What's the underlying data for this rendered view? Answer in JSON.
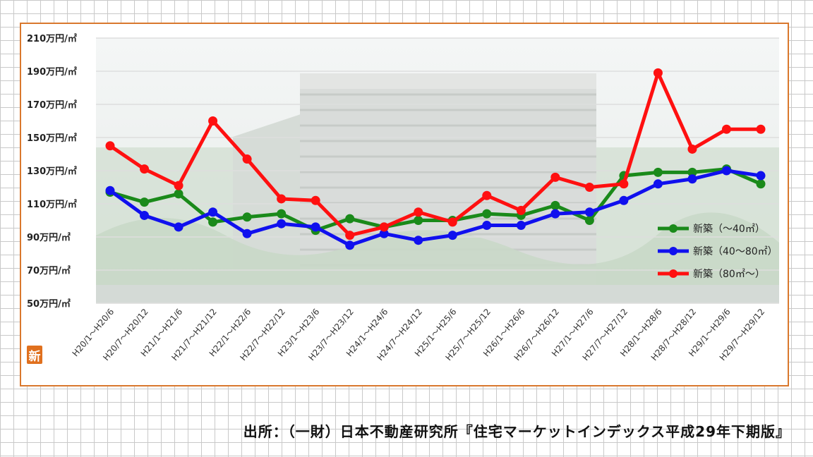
{
  "chart_data": {
    "type": "line",
    "title": "",
    "xlabel": "",
    "ylabel": "",
    "ylim": [
      50,
      210
    ],
    "yticks": [
      "50万円/㎡",
      "70万円/㎡",
      "90万円/㎡",
      "110万円/㎡",
      "130万円/㎡",
      "150万円/㎡",
      "170万円/㎡",
      "190万円/㎡",
      "210万円/㎡"
    ],
    "categories": [
      "H20/1～H20/6",
      "H20/7～H20/12",
      "H21/1～H21/6",
      "H21/7～H21/12",
      "H22/1～H22/6",
      "H22/7～H22/12",
      "H23/1～H23/6",
      "H23/7～H23/12",
      "H24/1～H24/6",
      "H24/7～H24/12",
      "H25/1～H25/6",
      "H25/7～H25/12",
      "H26/1～H26/6",
      "H26/7～H26/12",
      "H27/1～H27/6",
      "H27/7～H27/12",
      "H28/1～H28/6",
      "H28/7～H28/12",
      "H29/1～H29/6",
      "H29/7～H29/12"
    ],
    "series": [
      {
        "name": "新築（～40㎡）",
        "color": "#1a8a1a",
        "values": [
          117,
          111,
          116,
          99,
          102,
          104,
          94,
          101,
          96,
          100,
          100,
          104,
          103,
          109,
          100,
          127,
          129,
          129,
          131,
          122
        ]
      },
      {
        "name": "新築（40～80㎡）",
        "color": "#1010ee",
        "values": [
          118,
          103,
          96,
          105,
          92,
          98,
          96,
          85,
          92,
          88,
          91,
          97,
          97,
          104,
          105,
          112,
          122,
          125,
          130,
          127
        ]
      },
      {
        "name": "新築（80㎡～）",
        "color": "#ff1010",
        "values": [
          145,
          131,
          121,
          160,
          137,
          113,
          112,
          91,
          96,
          105,
          99,
          115,
          106,
          126,
          120,
          122,
          189,
          143,
          155,
          155
        ]
      }
    ],
    "grid": true,
    "legend_position": "right"
  },
  "badge_char": "新",
  "source_text": "出所：（一財）日本不動産研究所『住宅マーケットインデックス平成29年下期版』"
}
